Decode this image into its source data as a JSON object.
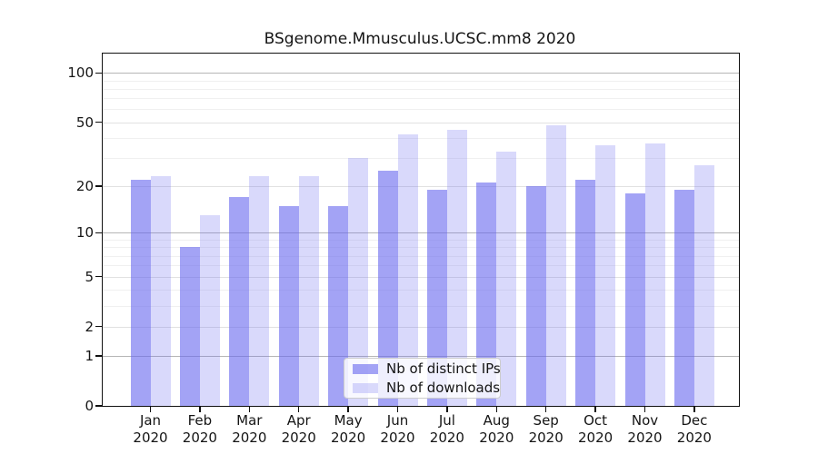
{
  "chart_data": {
    "type": "bar",
    "title": "BSgenome.Mmusculus.UCSC.mm8 2020",
    "categories": [
      "Jan",
      "Feb",
      "Mar",
      "Apr",
      "May",
      "Jun",
      "Jul",
      "Aug",
      "Sep",
      "Oct",
      "Nov",
      "Dec"
    ],
    "category_year": "2020",
    "series": [
      {
        "name": "Nb of distinct IPs",
        "color": "#a5a5f0",
        "values": [
          22,
          8,
          17,
          15,
          15,
          25,
          19,
          21,
          20,
          22,
          18,
          19
        ]
      },
      {
        "name": "Nb of downloads",
        "color": "#d9d9f8",
        "values": [
          23,
          13,
          23,
          23,
          30,
          42,
          45,
          33,
          48,
          36,
          37,
          27
        ]
      }
    ],
    "yscale": "log10(1+x)",
    "ylim": [
      0,
      131
    ],
    "yticks": [
      0,
      1,
      2,
      5,
      10,
      20,
      50,
      100
    ],
    "minor_gridlines": [
      3,
      4,
      6,
      7,
      8,
      9,
      30,
      40,
      60,
      70,
      80,
      90
    ],
    "decade_gridlines": [
      1,
      10,
      100
    ],
    "grid": true,
    "legend_position": "inside-bottom-center",
    "colors": {
      "ips_bar": "#a5a5f0",
      "downloads_bar": "#d9d9f8",
      "axis": "#111111",
      "grid_minor": "#f0f0f0",
      "grid_major": "#e1e1e1",
      "grid_decade": "#b6b6b6",
      "text": "#151515"
    }
  }
}
